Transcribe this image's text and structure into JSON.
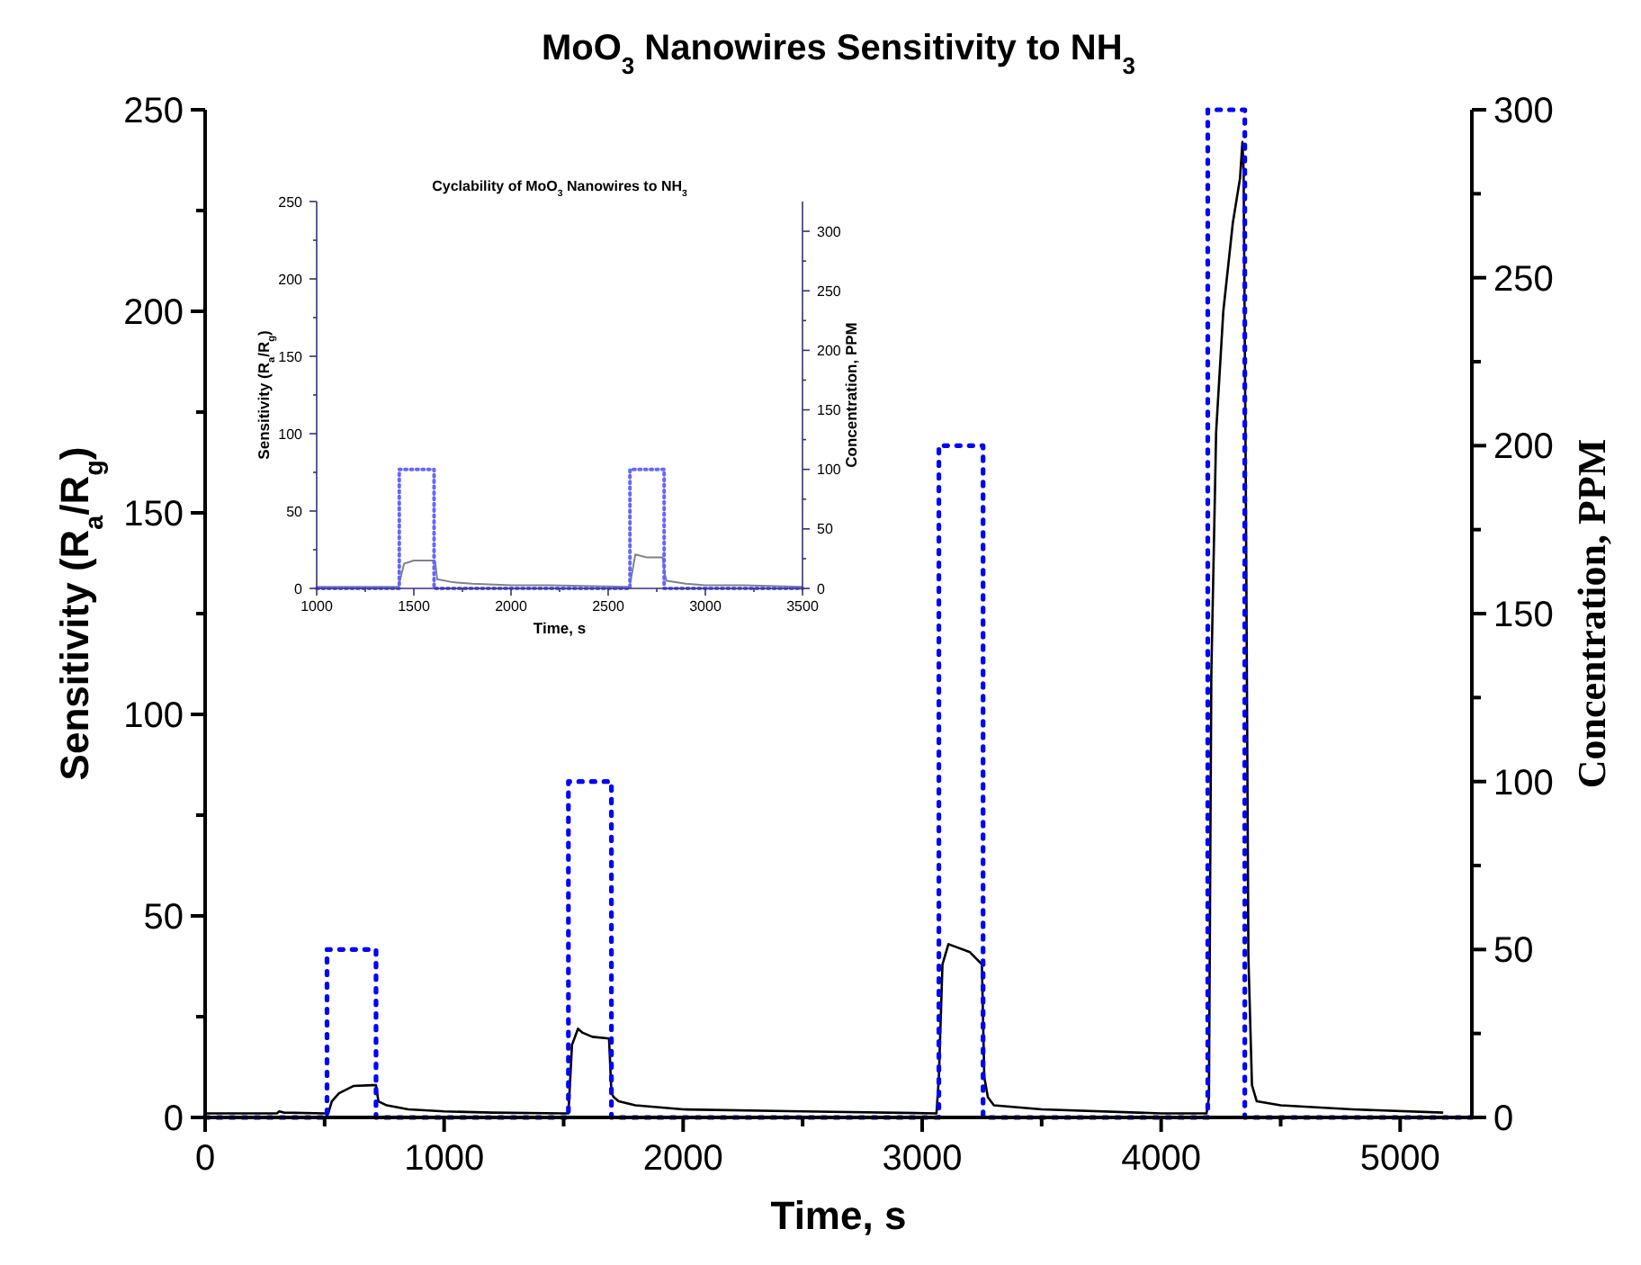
{
  "chart_data": [
    {
      "type": "line",
      "title": "MoO$_{3}$ Nanowires Sensitivity to NH$_{3}$",
      "xlabel": "Time, s",
      "ylabel": "Sensitivity (R$_{a}$/R$_{g}$)",
      "y2label": "Concentration, PPM",
      "xlim": [
        0,
        5300
      ],
      "xticks": [
        0,
        {
          "value": 500,
          "label": null
        },
        1000,
        {
          "value": 1500,
          "label": null
        },
        2000,
        {
          "value": 2500,
          "label": null
        },
        3000,
        {
          "value": 3500,
          "label": null
        },
        4000,
        {
          "value": 4500,
          "label": null
        },
        5000
      ],
      "ylim": [
        0,
        250
      ],
      "yticks": [
        0,
        {
          "value": 25,
          "label": null
        },
        50,
        {
          "value": 75,
          "label": null
        },
        100,
        {
          "value": 125,
          "label": null
        },
        150,
        {
          "value": 175,
          "label": null
        },
        200,
        {
          "value": 225,
          "label": null
        },
        250
      ],
      "y2lim": [
        0,
        300
      ],
      "y2ticks": [
        0,
        {
          "value": 25,
          "label": null
        },
        50,
        {
          "value": 75,
          "label": null
        },
        100,
        {
          "value": 125,
          "label": null
        },
        150,
        {
          "value": 175,
          "label": null
        },
        200,
        {
          "value": 225,
          "label": null
        },
        250,
        {
          "value": 275,
          "label": null
        },
        300
      ],
      "grid": false,
      "series": [
        {
          "color": "#000000",
          "line_style": "solid",
          "x": [
            0,
            300,
            310,
            330,
            500,
            515,
            530,
            560,
            620,
            700,
            715,
            725,
            760,
            850,
            1000,
            1200,
            1500,
            1520,
            1535,
            1560,
            1580,
            1620,
            1690,
            1700,
            1710,
            1730,
            1800,
            2000,
            2500,
            3060,
            3070,
            3085,
            3110,
            3200,
            3250,
            3260,
            3275,
            3300,
            3500,
            4000,
            4190,
            4200,
            4210,
            4230,
            4260,
            4300,
            4330,
            4340,
            4345,
            4355,
            4365,
            4380,
            4400,
            4500,
            4800,
            5180
          ],
          "values": [
            1,
            1,
            1.5,
            1.2,
            1,
            1,
            4,
            6,
            7.8,
            8,
            8,
            4,
            3,
            2,
            1.5,
            1.2,
            1,
            1,
            18,
            22,
            21,
            20,
            19.6,
            6,
            5,
            4,
            3,
            2,
            1.5,
            1,
            10,
            38,
            43,
            41,
            38,
            10,
            5,
            3,
            2,
            1,
            1,
            5,
            110,
            170,
            200,
            222,
            233,
            242,
            235,
            150,
            40,
            8,
            4,
            3,
            2,
            1.2
          ]
        },
        {
          "color": "#0000ff",
          "line_style": "dotted",
          "axis": "y2",
          "x": [
            0,
            510,
            510,
            715,
            715,
            1520,
            1520,
            1700,
            1700,
            3070,
            3070,
            3255,
            3255,
            4195,
            4195,
            4350,
            4350,
            5300
          ],
          "values": [
            0,
            0,
            50,
            50,
            0,
            0,
            100,
            100,
            0,
            0,
            200,
            200,
            0,
            0,
            300,
            300,
            0,
            0
          ]
        }
      ]
    },
    {
      "type": "line",
      "title": "Cyclability of MoO$_{3}$ Nanowires to NH$_{3}$",
      "xlabel": "Time, s",
      "ylabel": "Sensitivity (R$_{a}$/R$_{g}$)",
      "y2label": "Concentration, PPM",
      "xlim": [
        1000,
        3500
      ],
      "xticks": [
        1000,
        {
          "value": 1250,
          "label": null
        },
        1500,
        {
          "value": 1750,
          "label": null
        },
        2000,
        {
          "value": 2250,
          "label": null
        },
        2500,
        {
          "value": 2750,
          "label": null
        },
        3000,
        {
          "value": 3250,
          "label": null
        },
        3500
      ],
      "ylim": [
        0,
        250
      ],
      "yticks": [
        0,
        {
          "value": 25,
          "label": null
        },
        50,
        {
          "value": 75,
          "label": null
        },
        100,
        {
          "value": 125,
          "label": null
        },
        150,
        {
          "value": 175,
          "label": null
        },
        200,
        {
          "value": 225,
          "label": null
        },
        250
      ],
      "y2lim": [
        0,
        325
      ],
      "y2ticks": [
        0,
        {
          "value": 25,
          "label": null
        },
        50,
        {
          "value": 75,
          "label": null
        },
        100,
        {
          "value": 125,
          "label": null
        },
        150,
        {
          "value": 175,
          "label": null
        },
        200,
        {
          "value": 225,
          "label": null
        },
        250,
        {
          "value": 275,
          "label": null
        },
        300
      ],
      "grid": false,
      "series": [
        {
          "color": "#808090",
          "line_style": "solid",
          "x": [
            1000,
            1420,
            1430,
            1450,
            1500,
            1600,
            1610,
            1620,
            1700,
            1800,
            2000,
            2200,
            2600,
            2610,
            2620,
            2640,
            2700,
            2780,
            2790,
            2800,
            2900,
            3000,
            3200,
            3500
          ],
          "values": [
            1,
            1,
            6,
            16,
            18,
            18,
            17,
            6,
            4,
            3,
            2,
            2,
            1,
            1,
            8,
            22,
            20,
            20,
            10,
            5,
            3,
            2,
            2,
            1
          ]
        },
        {
          "color": "#6666ff",
          "line_style": "dotted",
          "axis": "y2",
          "x": [
            1000,
            1425,
            1425,
            1604,
            1604,
            2612,
            2612,
            2788,
            2788,
            3500
          ],
          "values": [
            0,
            0,
            100,
            100,
            0,
            0,
            100,
            100,
            0,
            0
          ]
        }
      ]
    }
  ]
}
